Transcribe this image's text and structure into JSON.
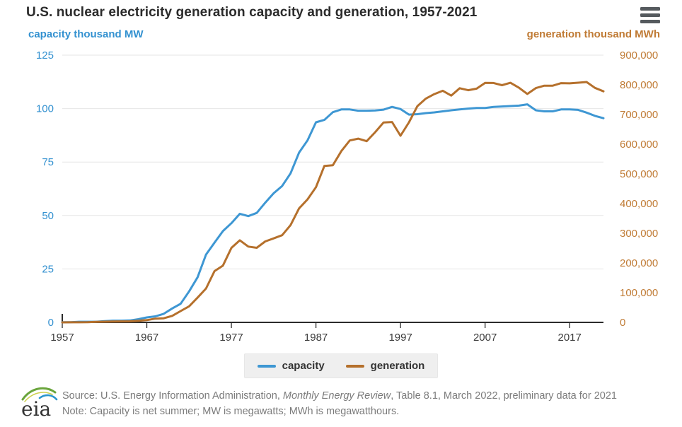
{
  "header": {
    "title": "U.S. nuclear electricity generation capacity and generation, 1957-2021",
    "menu_icon": "hamburger-icon"
  },
  "colors": {
    "capacity_line": "#3e97d3",
    "generation_line": "#b5702c",
    "left_axis_text": "#3391d0",
    "right_axis_text": "#c07b35",
    "x_axis_text": "#3d3d3d",
    "gridline": "#e6e6e6",
    "axis_line": "#2b2b2b",
    "title_text": "#2b2b2b",
    "legend_bg": "#efefef",
    "footer_text": "#7b7b7b",
    "menu_icon": "#555a5e"
  },
  "chart_data": {
    "type": "line",
    "title": "U.S. nuclear electricity generation capacity and generation, 1957-2021",
    "grid": "horizontal-only",
    "legend_position": "bottom",
    "x": [
      1957,
      1958,
      1959,
      1960,
      1961,
      1962,
      1963,
      1964,
      1965,
      1966,
      1967,
      1968,
      1969,
      1970,
      1971,
      1972,
      1973,
      1974,
      1975,
      1976,
      1977,
      1978,
      1979,
      1980,
      1981,
      1982,
      1983,
      1984,
      1985,
      1986,
      1987,
      1988,
      1989,
      1990,
      1991,
      1992,
      1993,
      1994,
      1995,
      1996,
      1997,
      1998,
      1999,
      2000,
      2001,
      2002,
      2003,
      2004,
      2005,
      2006,
      2007,
      2008,
      2009,
      2010,
      2011,
      2012,
      2013,
      2014,
      2015,
      2016,
      2017,
      2018,
      2019,
      2020,
      2021
    ],
    "series": [
      {
        "name": "capacity",
        "axis": "left",
        "color": "#3e97d3",
        "values": [
          0.1,
          0.1,
          0.3,
          0.3,
          0.3,
          0.6,
          0.8,
          0.8,
          0.9,
          1.5,
          2.3,
          2.8,
          4.0,
          6.5,
          8.7,
          14.5,
          21.1,
          31.7,
          37.3,
          42.7,
          46.4,
          50.8,
          49.7,
          51.2,
          56.0,
          60.4,
          63.8,
          69.7,
          79.4,
          85.1,
          93.6,
          94.7,
          98.3,
          99.6,
          99.6,
          99.0,
          99.0,
          99.1,
          99.5,
          100.8,
          99.8,
          97.2,
          97.4,
          97.9,
          98.2,
          98.7,
          99.2,
          99.6,
          100.0,
          100.3,
          100.3,
          100.8,
          101.0,
          101.2,
          101.4,
          102.0,
          99.2,
          98.7,
          98.7,
          99.6,
          99.6,
          99.4,
          98.1,
          96.6,
          95.5
        ]
      },
      {
        "name": "generation",
        "axis": "right",
        "color": "#b5702c",
        "values": [
          10,
          165,
          188,
          518,
          1692,
          2270,
          3212,
          3343,
          3657,
          5520,
          7655,
          12528,
          13928,
          21804,
          38105,
          54091,
          83479,
          113976,
          172505,
          191104,
          250883,
          276403,
          255155,
          251116,
          272674,
          282773,
          293677,
          327634,
          383691,
          414038,
          455270,
          526973,
          529355,
          576862,
          612565,
          618776,
          610291,
          640440,
          673402,
          674729,
          628644,
          673702,
          728254,
          753893,
          768826,
          780064,
          763733,
          788528,
          781986,
          787219,
          806425,
          806208,
          798855,
          806968,
          790204,
          769331,
          789016,
          797166,
          797178,
          805694,
          804950,
          807084,
          809409,
          789879,
          778152
        ]
      }
    ],
    "left_axis": {
      "label": "capacity thousand MW",
      "ticks": [
        0,
        25,
        50,
        75,
        100,
        125
      ],
      "range": [
        0,
        125
      ]
    },
    "right_axis": {
      "label": "generation thousand MWh",
      "ticks": [
        0,
        100000,
        200000,
        300000,
        400000,
        500000,
        600000,
        700000,
        800000,
        900000
      ],
      "range": [
        0,
        900000
      ],
      "format": "comma"
    },
    "x_axis": {
      "ticks": [
        1957,
        1967,
        1977,
        1987,
        1997,
        2007,
        2017
      ],
      "range": [
        1957,
        2021
      ]
    }
  },
  "legend": {
    "items": [
      {
        "label": "capacity"
      },
      {
        "label": "generation"
      }
    ]
  },
  "footer": {
    "source_prefix": "Source: U.S. Energy Information Administration, ",
    "source_italic": "Monthly Energy Review",
    "source_suffix": ", Table 8.1, March 2022, preliminary data for 2021",
    "note": "Note: Capacity is net summer; MW is megawatts; MWh is megawatthours.",
    "logo_text": "eia"
  }
}
